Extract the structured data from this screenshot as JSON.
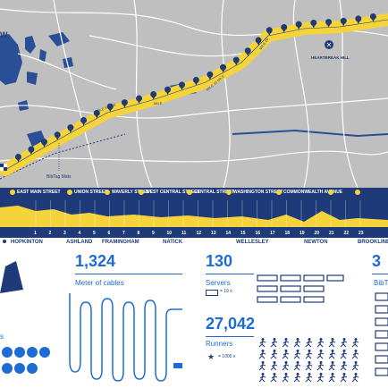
{
  "map": {
    "letter": "W",
    "label_bibtag": "BibTag Mats",
    "label_heartbreak": "HEARTBREAK HILL",
    "route_labels": [
      "MILE 5 MILE",
      "MILE",
      "MILE 15 MILE",
      "MILE 20"
    ],
    "route_color": "#f5d33a",
    "marker_color": "#1e3a78"
  },
  "profile": {
    "streets": [
      "EAST MAIN STREET",
      "UNION STREET",
      "WAVERLY STREET",
      "WEST CENTRAL STREET",
      "CENTRAL STREET",
      "WASHINGTON STREET",
      "COMMONWEALTH AVENUE"
    ],
    "mile_numbers": [
      "1",
      "2",
      "3",
      "4",
      "5",
      "6",
      "7",
      "8",
      "9",
      "10",
      "11",
      "12",
      "13",
      "14",
      "15",
      "16",
      "17",
      "18",
      "19",
      "20",
      "21",
      "22",
      "23"
    ],
    "towns": [
      "HOPKINTON",
      "ASHLAND",
      "FRAMINGHAM",
      "NATICK",
      "WELLESLEY",
      "NEWTON",
      "BROOKLINE"
    ]
  },
  "stats": {
    "cables": {
      "value": "1,324",
      "label": "Meter of cables"
    },
    "servers": {
      "value": "130",
      "label": "Servers",
      "legend": "= 10 x"
    },
    "runners": {
      "value": "27,042",
      "label": "Runners",
      "legend": "= 1000 x"
    },
    "bibtag": {
      "value": "3",
      "label": "BibT"
    },
    "left_caption": "s"
  }
}
